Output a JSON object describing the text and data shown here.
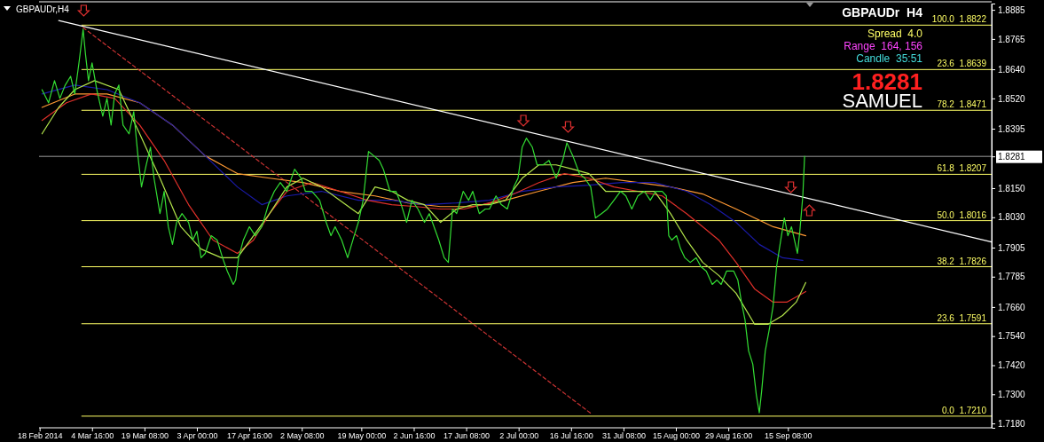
{
  "chart_data": {
    "type": "line",
    "title": "GBPAUDr,H4",
    "annotations": [
      "GBPAUDr  H4",
      "Spread  4.0",
      "Range  164, 156",
      "Candle  35:51",
      "1.8281",
      "SAMUEL"
    ],
    "xlim": [
      "2014-02-17T20:00",
      "2014-11-11T08:00"
    ],
    "ylim": [
      1.7162,
      1.8911
    ],
    "xticks": [
      {
        "value": "2014-02-18",
        "label": "18 Feb 2014"
      },
      {
        "value": "2014-03-04T16:00",
        "label": "4 Mar 16:00"
      },
      {
        "value": "2014-03-19T08:00",
        "label": "19 Mar 08:00"
      },
      {
        "value": "2014-04-03",
        "label": "3 Apr 00:00"
      },
      {
        "value": "2014-04-17T16:00",
        "label": "17 Apr 16:00"
      },
      {
        "value": "2014-05-02T08:00",
        "label": "2 May 08:00"
      },
      {
        "value": "2014-05-19",
        "label": "19 May 00:00"
      },
      {
        "value": "2014-06-02T16:00",
        "label": "2 Jun 16:00"
      },
      {
        "value": "2014-06-17T08:00",
        "label": "17 Jun 08:00"
      },
      {
        "value": "2014-07-02",
        "label": "2 Jul 00:00"
      },
      {
        "value": "2014-07-16T16:00",
        "label": "16 Jul 16:00"
      },
      {
        "value": "2014-07-31T08:00",
        "label": "31 Jul 08:00"
      },
      {
        "value": "2014-08-15",
        "label": "15 Aug 00:00"
      },
      {
        "value": "2014-08-29T16:00",
        "label": "29 Aug 16:00"
      },
      {
        "value": "2014-09-15T08:00",
        "label": "15 Sep 08:00"
      }
    ],
    "yticks": [
      1.8885,
      1.8765,
      {
        "value": 1.864,
        "label": "1.8640"
      },
      {
        "value": 1.852,
        "label": "1.8520"
      },
      1.8395,
      1.8281,
      {
        "value": 1.815,
        "label": "1.8150"
      },
      {
        "value": 1.803,
        "label": "1.8030"
      },
      1.7905,
      1.7785,
      {
        "value": 1.766,
        "label": "1.7660"
      },
      {
        "value": 1.754,
        "label": "1.7540"
      },
      {
        "value": 1.742,
        "label": "1.7420"
      },
      {
        "value": 1.73,
        "label": "1.7300"
      },
      {
        "value": 1.718,
        "label": "1.7180"
      }
    ],
    "ref_lines": [
      {
        "axis": "y",
        "value": 1.8822,
        "label": "100.0  1.8822",
        "color": "#ffff66"
      },
      {
        "axis": "y",
        "value": 1.8639,
        "label": "23.6  1.8639",
        "color": "#ffff66"
      },
      {
        "axis": "y",
        "value": 1.8471,
        "label": "78.2  1.8471",
        "color": "#ffff66"
      },
      {
        "axis": "y",
        "value": 1.8281,
        "color": "#9a9a9a"
      },
      {
        "axis": "y",
        "value": 1.8207,
        "label": "61.8  1.8207",
        "color": "#ffff66"
      },
      {
        "axis": "y",
        "value": 1.8016,
        "label": "50.0  1.8016",
        "color": "#ffff66"
      },
      {
        "axis": "y",
        "value": 1.7826,
        "label": "38.2  1.7826",
        "color": "#ffff66"
      },
      {
        "axis": "y",
        "value": 1.7591,
        "label": "23.6  1.7591",
        "color": "#ffff66"
      },
      {
        "axis": "y",
        "value": 1.721,
        "label": "0.0  1.7210",
        "color": "#ffff66"
      }
    ],
    "series": [
      {
        "color": "#ffffff",
        "x": [
          "2014-02-23T08:00",
          "2014-11-11T08:00"
        ],
        "values": [
          1.8841,
          1.7928
        ]
      },
      {
        "color": "#cc3333",
        "line_style": "dashed",
        "x": [
          "2014-03-02T04:00",
          "2014-07-22T08:00"
        ],
        "values": [
          1.8812,
          1.722
        ]
      },
      {
        "color": "#ff9933",
        "x": [
          "2014-02-18T16:00",
          "2014-02-27T20:00",
          "2014-03-08T20:00",
          "2014-03-18T00:00",
          "2014-03-27T04:00",
          "2014-04-05T08:00",
          "2014-04-14T08:00",
          "2014-04-23T08:00",
          "2014-05-02T16:00",
          "2014-05-13T00:00",
          "2014-05-22T20:00",
          "2014-06-01T00:00",
          "2014-06-10T04:00",
          "2014-06-19T04:00",
          "2014-06-28T08:00",
          "2014-07-07T16:00",
          "2014-07-17T04:00",
          "2014-07-26T08:00",
          "2014-08-04T08:00",
          "2014-08-13T12:00",
          "2014-08-22T12:00",
          "2014-08-31T20:00",
          "2014-09-11T04:00",
          "2014-09-20T08:00"
        ],
        "values": [
          1.8483,
          1.8538,
          1.8538,
          1.8502,
          1.841,
          1.8283,
          1.821,
          1.8191,
          1.8173,
          1.8137,
          1.8118,
          1.8089,
          1.8074,
          1.8074,
          1.81,
          1.8137,
          1.8173,
          1.8191,
          1.8173,
          1.8155,
          1.8126,
          1.8064,
          1.7991,
          1.7954
        ]
      },
      {
        "color": "#1a1aa8",
        "x": [
          "2014-02-18T16:00",
          "2014-02-27T20:00",
          "2014-03-08T20:00",
          "2014-03-18T00:00",
          "2014-03-27T04:00",
          "2014-04-05T08:00",
          "2014-04-14T08:00",
          "2014-04-21T04:00",
          "2014-04-28T04:00",
          "2014-05-07T20:00",
          "2014-05-18T04:00",
          "2014-05-27T12:00",
          "2014-06-05T16:00",
          "2014-06-14T16:00",
          "2014-06-23T20:00",
          "2014-07-03T00:00",
          "2014-07-12T12:00",
          "2014-07-21T16:00",
          "2014-07-30T20:00",
          "2014-08-09T00:00",
          "2014-08-18T00:00",
          "2014-08-24T16:00",
          "2014-08-31T20:00",
          "2014-09-07T08:00",
          "2014-09-13T20:00",
          "2014-09-19T12:00"
        ],
        "values": [
          1.8538,
          1.8575,
          1.8556,
          1.8502,
          1.841,
          1.8283,
          1.8155,
          1.8082,
          1.8118,
          1.8137,
          1.81,
          1.81,
          1.8082,
          1.8089,
          1.81,
          1.8137,
          1.8155,
          1.8162,
          1.8173,
          1.8173,
          1.8137,
          1.8082,
          1.8009,
          1.7918,
          1.7863,
          1.7852
        ]
      },
      {
        "color": "#e0302a",
        "x": [
          "2014-02-18T16:00",
          "2014-02-25T12:00",
          "2014-03-04T12:00",
          "2014-03-11T00:00",
          "2014-03-18T00:00",
          "2014-03-24T20:00",
          "2014-03-31T16:00",
          "2014-04-07T12:00",
          "2014-04-14T08:00",
          "2014-04-18T20:00",
          "2014-04-23T08:00",
          "2014-04-28T04:00",
          "2014-05-05T04:00",
          "2014-05-13T00:00",
          "2014-05-20T16:00",
          "2014-05-27T12:00",
          "2014-06-03T08:00",
          "2014-06-10T04:00",
          "2014-06-16T20:00",
          "2014-06-23T20:00",
          "2014-06-30T16:00",
          "2014-07-07T16:00",
          "2014-07-14T20:00",
          "2014-07-21T16:00",
          "2014-07-28T16:00",
          "2014-08-04T08:00",
          "2014-08-11T04:00",
          "2014-08-18T00:00",
          "2014-08-22T12:00",
          "2014-08-27T00:00",
          "2014-08-31T20:00",
          "2014-09-06T00:00",
          "2014-09-11T04:00",
          "2014-09-15T00:00",
          "2014-09-20T08:00"
        ],
        "values": [
          1.8429,
          1.8502,
          1.8538,
          1.852,
          1.841,
          1.8264,
          1.8082,
          1.7936,
          1.7881,
          1.7936,
          1.8045,
          1.8137,
          1.8173,
          1.8137,
          1.81,
          1.8082,
          1.8074,
          1.8064,
          1.8064,
          1.8089,
          1.8126,
          1.8173,
          1.821,
          1.8191,
          1.8155,
          1.8137,
          1.8118,
          1.8045,
          1.7991,
          1.7936,
          1.7844,
          1.7735,
          1.768,
          1.768,
          1.7724
        ]
      },
      {
        "color": "#b4e64b",
        "x": [
          "2014-02-18T16:00",
          "2014-02-23T08:00",
          "2014-02-27T20:00",
          "2014-03-05T08:00",
          "2014-03-12T04:00",
          "2014-03-18T00:00",
          "2014-03-23T16:00",
          "2014-03-29T12:00",
          "2014-04-04T04:00",
          "2014-04-09T20:00",
          "2014-04-14T08:00",
          "2014-04-18T20:00",
          "2014-04-23T08:00",
          "2014-04-28T04:00",
          "2014-05-02T16:00",
          "2014-05-07T20:00",
          "2014-05-13T00:00",
          "2014-05-18T04:00",
          "2014-05-22T20:00",
          "2014-05-27T12:00",
          "2014-06-01T00:00",
          "2014-06-05T16:00",
          "2014-06-10T04:00",
          "2014-06-14T16:00",
          "2014-06-19T04:00",
          "2014-06-23T20:00",
          "2014-06-28T08:00",
          "2014-07-03T00:00",
          "2014-07-07T16:00",
          "2014-07-12T12:00",
          "2014-07-17T04:00",
          "2014-07-21T16:00",
          "2014-07-26T08:00",
          "2014-07-30T20:00",
          "2014-08-04T08:00",
          "2014-08-09T00:00",
          "2014-08-13T12:00",
          "2014-08-18T00:00",
          "2014-08-22T12:00",
          "2014-08-27T00:00",
          "2014-08-31T20:00",
          "2014-09-06T00:00",
          "2014-09-09T20:00",
          "2014-09-13T20:00",
          "2014-09-17T16:00",
          "2014-09-20T08:00"
        ],
        "values": [
          1.8374,
          1.8483,
          1.8556,
          1.8593,
          1.8556,
          1.8374,
          1.8191,
          1.7991,
          1.7899,
          1.7863,
          1.7863,
          1.7954,
          1.8045,
          1.8155,
          1.8191,
          1.8155,
          1.81,
          1.8045,
          1.8155,
          1.8137,
          1.81,
          1.8082,
          1.8009,
          1.8064,
          1.8082,
          1.8082,
          1.81,
          1.8191,
          1.8246,
          1.8246,
          1.8228,
          1.821,
          1.8137,
          1.8137,
          1.8137,
          1.8137,
          1.8045,
          1.7936,
          1.7844,
          1.779,
          1.7717,
          1.7589,
          1.7589,
          1.7625,
          1.768,
          1.7761
        ]
      },
      {
        "color": "#33dd33",
        "x": [
          "2014-02-18T16:00",
          "2014-02-20T12:00",
          "2014-02-22T04:00",
          "2014-02-23T16:00",
          "2014-02-25T04:00",
          "2014-02-26T16:00",
          "2014-02-27T20:00",
          "2014-03-01T00:00",
          "2014-03-02T04:00",
          "2014-03-02T20:00",
          "2014-03-03T16:00",
          "2014-03-04T16:00",
          "2014-03-06T00:00",
          "2014-03-07T16:00",
          "2014-03-08T20:00",
          "2014-03-10T00:00",
          "2014-03-11T00:00",
          "2014-03-12T04:00",
          "2014-03-13T08:00",
          "2014-03-15T00:00",
          "2014-03-16T08:00",
          "2014-03-17T12:00",
          "2014-03-18T12:00",
          "2014-03-19T20:00",
          "2014-03-21T00:00",
          "2014-03-22T00:00",
          "2014-03-23T16:00",
          "2014-03-24T20:00",
          "2014-03-26T00:00",
          "2014-03-27T04:00",
          "2014-03-28T08:00",
          "2014-03-29T20:00",
          "2014-03-31T16:00",
          "2014-04-01T20:00",
          "2014-04-03T00:00",
          "2014-04-04T04:00",
          "2014-04-05T08:00",
          "2014-04-07T00:00",
          "2014-04-08T16:00",
          "2014-04-10T04:00",
          "2014-04-11T12:00",
          "2014-04-13T04:00",
          "2014-04-13T20:00",
          "2014-04-14T16:00",
          "2014-04-16T00:00",
          "2014-04-17T16:00",
          "2014-04-19T08:00",
          "2014-04-21T04:00",
          "2014-04-23T00:00",
          "2014-04-24T16:00",
          "2014-04-26T08:00",
          "2014-04-28T04:00",
          "2014-04-30T08:00",
          "2014-05-02T04:00",
          "2014-05-03T08:00",
          "2014-05-05T04:00",
          "2014-05-07T08:00",
          "2014-05-09T04:00",
          "2014-05-10T12:00",
          "2014-05-11T16:00",
          "2014-05-13T12:00",
          "2014-05-15T04:00",
          "2014-05-17T00:00",
          "2014-05-18T04:00",
          "2014-05-19T12:00",
          "2014-05-21T00:00",
          "2014-05-22T12:00",
          "2014-05-24T00:00",
          "2014-05-25T04:00",
          "2014-05-27T00:00",
          "2014-05-28T16:00",
          "2014-05-30T04:00",
          "2014-05-31T16:00",
          "2014-06-02T04:00",
          "2014-06-03T20:00",
          "2014-06-05T16:00",
          "2014-06-07T00:00",
          "2014-06-08T08:00",
          "2014-06-09T16:00",
          "2014-06-11T04:00",
          "2014-06-12T08:00",
          "2014-06-13T12:00",
          "2014-06-14T16:00",
          "2014-06-16T12:00",
          "2014-06-18T00:00",
          "2014-06-19T04:00",
          "2014-06-21T00:00",
          "2014-06-22T16:00",
          "2014-06-23T20:00",
          "2014-06-25T16:00",
          "2014-06-27T04:00",
          "2014-06-28T20:00",
          "2014-06-30T16:00",
          "2014-07-01T20:00",
          "2014-07-03T00:00",
          "2014-07-04T04:00",
          "2014-07-05T20:00",
          "2014-07-07T04:00",
          "2014-07-08T20:00",
          "2014-07-10T12:00",
          "2014-07-12T12:00",
          "2014-07-14T08:00",
          "2014-07-15T12:00",
          "2014-07-17T04:00",
          "2014-07-19T00:00",
          "2014-07-20T12:00",
          "2014-07-22T04:00",
          "2014-07-23T12:00",
          "2014-07-25T04:00",
          "2014-07-26T20:00",
          "2014-07-28T16:00",
          "2014-07-30T12:00",
          "2014-08-01T00:00",
          "2014-08-02T16:00",
          "2014-08-04T08:00",
          "2014-08-06T04:00",
          "2014-08-07T20:00",
          "2014-08-09T08:00",
          "2014-08-11T04:00",
          "2014-08-12T08:00",
          "2014-08-13T00:00",
          "2014-08-13T20:00",
          "2014-08-15T04:00",
          "2014-08-16T08:00",
          "2014-08-17T12:00",
          "2014-08-19T00:00",
          "2014-08-20T16:00",
          "2014-08-22T00:00",
          "2014-08-23T12:00",
          "2014-08-25T04:00",
          "2014-08-26T12:00",
          "2014-08-27T16:00",
          "2014-08-29T04:00",
          "2014-08-31T04:00",
          "2014-09-01T08:00",
          "2014-09-02T08:00",
          "2014-09-03T08:00",
          "2014-09-04T08:00",
          "2014-09-05T12:00",
          "2014-09-06T12:00",
          "2014-09-07T08:00",
          "2014-09-08T00:00",
          "2014-09-09T00:00",
          "2014-09-10T04:00",
          "2014-09-11T04:00",
          "2014-09-12T04:00",
          "2014-09-13T08:00",
          "2014-09-14T08:00",
          "2014-09-15T08:00",
          "2014-09-16T08:00",
          "2014-09-17T04:00",
          "2014-09-18T00:00",
          "2014-09-18T16:00",
          "2014-09-19T12:00",
          "2014-09-20T00:00"
        ],
        "values": [
          1.8556,
          1.8502,
          1.8593,
          1.852,
          1.8575,
          1.8611,
          1.8538,
          1.8666,
          1.8805,
          1.8702,
          1.8593,
          1.8666,
          1.8556,
          1.8447,
          1.852,
          1.841,
          1.8538,
          1.8575,
          1.841,
          1.8374,
          1.8465,
          1.8283,
          1.8155,
          1.8246,
          1.8319,
          1.8191,
          1.8045,
          1.8137,
          1.7991,
          1.7918,
          1.8009,
          1.8045,
          1.8009,
          1.7936,
          1.7972,
          1.7863,
          1.7881,
          1.7954,
          1.7936,
          1.7863,
          1.7808,
          1.7753,
          1.7771,
          1.7863,
          1.7936,
          1.7991,
          1.7954,
          1.7991,
          1.8082,
          1.8137,
          1.8173,
          1.8137,
          1.8228,
          1.8191,
          1.8137,
          1.8137,
          1.81,
          1.8009,
          1.7954,
          1.7991,
          1.7936,
          1.7863,
          1.7954,
          1.8009,
          1.81,
          1.8301,
          1.8283,
          1.8264,
          1.8228,
          1.8137,
          1.8137,
          1.8082,
          1.8009,
          1.81,
          1.8064,
          1.8009,
          1.8045,
          1.7991,
          1.7936,
          1.7863,
          1.7844,
          1.8064,
          1.8045,
          1.8137,
          1.81,
          1.8137,
          1.8045,
          1.8064,
          1.8064,
          1.8118,
          1.8082,
          1.8064,
          1.8155,
          1.8191,
          1.8319,
          1.8356,
          1.8319,
          1.8246,
          1.8246,
          1.8264,
          1.8191,
          1.8264,
          1.8337,
          1.8283,
          1.821,
          1.8191,
          1.8155,
          1.8027,
          1.8045,
          1.8064,
          1.81,
          1.8137,
          1.8118,
          1.8064,
          1.8118,
          1.8137,
          1.81,
          1.8137,
          1.8137,
          1.8118,
          1.7954,
          1.7936,
          1.7954,
          1.7899,
          1.7863,
          1.7844,
          1.7863,
          1.7826,
          1.7808,
          1.7753,
          1.7771,
          1.7753,
          1.7808,
          1.7808,
          1.7771,
          1.768,
          1.7607,
          1.7479,
          1.7425,
          1.7297,
          1.7224,
          1.7315,
          1.7479,
          1.7571,
          1.7662,
          1.7826,
          1.7936,
          1.8027,
          1.7954,
          1.7991,
          1.7936,
          1.7881,
          1.7972,
          1.8118,
          1.8281
        ]
      }
    ]
  }
}
